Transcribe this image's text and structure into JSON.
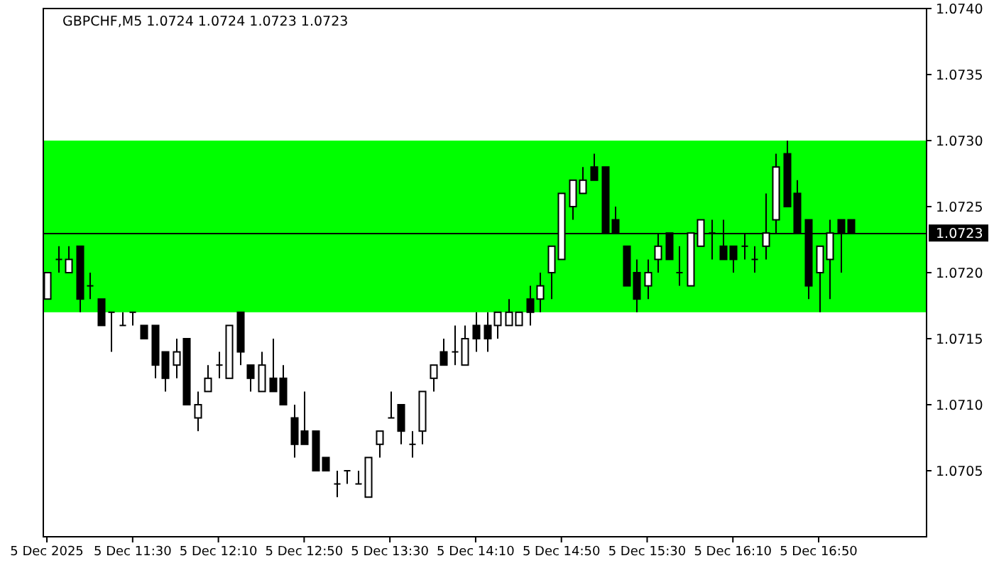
{
  "chart_data": {
    "type": "candlestick",
    "title": "GBPCHF,M5  1.0724 1.0724 1.0723 1.0723",
    "color": "#000000",
    "x": [
      "2025-12-05T10:50",
      "2025-12-05T10:55",
      "2025-12-05T11:00",
      "2025-12-05T11:05",
      "2025-12-05T11:10",
      "2025-12-05T11:15",
      "2025-12-05T11:20",
      "2025-12-05T11:25",
      "2025-12-05T11:30",
      "2025-12-05T11:35",
      "2025-12-05T11:40",
      "2025-12-05T11:45",
      "2025-12-05T11:50",
      "2025-12-05T11:55",
      "2025-12-05T12:00",
      "2025-12-05T12:05",
      "2025-12-05T12:10",
      "2025-12-05T12:15",
      "2025-12-05T12:20",
      "2025-12-05T12:25",
      "2025-12-05T12:30",
      "2025-12-05T12:35",
      "2025-12-05T12:40",
      "2025-12-05T12:45",
      "2025-12-05T12:50",
      "2025-12-05T12:55",
      "2025-12-05T13:00",
      "2025-12-05T13:05",
      "2025-12-05T13:10",
      "2025-12-05T13:15",
      "2025-12-05T13:20",
      "2025-12-05T13:25",
      "2025-12-05T13:30",
      "2025-12-05T13:35",
      "2025-12-05T13:40",
      "2025-12-05T13:45",
      "2025-12-05T13:50",
      "2025-12-05T13:55",
      "2025-12-05T14:00",
      "2025-12-05T14:05",
      "2025-12-05T14:10",
      "2025-12-05T14:15",
      "2025-12-05T14:20",
      "2025-12-05T14:25",
      "2025-12-05T14:30",
      "2025-12-05T14:35",
      "2025-12-05T14:40",
      "2025-12-05T14:45",
      "2025-12-05T14:50",
      "2025-12-05T14:55",
      "2025-12-05T15:00",
      "2025-12-05T15:05",
      "2025-12-05T15:10",
      "2025-12-05T15:15",
      "2025-12-05T15:20",
      "2025-12-05T15:25",
      "2025-12-05T15:30",
      "2025-12-05T15:35",
      "2025-12-05T15:40",
      "2025-12-05T15:45",
      "2025-12-05T15:50",
      "2025-12-05T15:55",
      "2025-12-05T16:00",
      "2025-12-05T16:05",
      "2025-12-05T16:10",
      "2025-12-05T16:15",
      "2025-12-05T16:20",
      "2025-12-05T16:25",
      "2025-12-05T16:30",
      "2025-12-05T16:35",
      "2025-12-05T16:40",
      "2025-12-05T16:45",
      "2025-12-05T16:50",
      "2025-12-05T16:55",
      "2025-12-05T17:00",
      "2025-12-05T17:05"
    ],
    "ohlc": [
      [
        1.0718,
        1.072,
        1.0718,
        1.072
      ],
      [
        1.0721,
        1.0722,
        1.072,
        1.0721
      ],
      [
        1.072,
        1.0722,
        1.072,
        1.0721
      ],
      [
        1.0722,
        1.0722,
        1.0717,
        1.0718
      ],
      [
        1.0719,
        1.072,
        1.0718,
        1.0719
      ],
      [
        1.0718,
        1.0718,
        1.0716,
        1.0716
      ],
      [
        1.0717,
        1.0717,
        1.0714,
        1.0717
      ],
      [
        1.0716,
        1.0717,
        1.0716,
        1.0716
      ],
      [
        1.0717,
        1.0717,
        1.0716,
        1.0717
      ],
      [
        1.0716,
        1.0716,
        1.0715,
        1.0715
      ],
      [
        1.0716,
        1.0716,
        1.0712,
        1.0713
      ],
      [
        1.0714,
        1.0714,
        1.0711,
        1.0712
      ],
      [
        1.0713,
        1.0715,
        1.0712,
        1.0714
      ],
      [
        1.0715,
        1.0715,
        1.071,
        1.071
      ],
      [
        1.0709,
        1.0711,
        1.0708,
        1.071
      ],
      [
        1.0711,
        1.0713,
        1.0711,
        1.0712
      ],
      [
        1.0713,
        1.0714,
        1.0712,
        1.0713
      ],
      [
        1.0712,
        1.0716,
        1.0712,
        1.0716
      ],
      [
        1.0717,
        1.0717,
        1.0713,
        1.0714
      ],
      [
        1.0713,
        1.0713,
        1.0711,
        1.0712
      ],
      [
        1.0711,
        1.0714,
        1.0711,
        1.0713
      ],
      [
        1.0712,
        1.0715,
        1.0711,
        1.0711
      ],
      [
        1.0712,
        1.0713,
        1.071,
        1.071
      ],
      [
        1.0709,
        1.071,
        1.0706,
        1.0707
      ],
      [
        1.0708,
        1.0711,
        1.0707,
        1.0707
      ],
      [
        1.0708,
        1.0708,
        1.0705,
        1.0705
      ],
      [
        1.0706,
        1.0706,
        1.0705,
        1.0705
      ],
      [
        1.0704,
        1.0705,
        1.0703,
        1.0704
      ],
      [
        1.0705,
        1.0705,
        1.0704,
        1.0705
      ],
      [
        1.0704,
        1.0705,
        1.0704,
        1.0704
      ],
      [
        1.0703,
        1.0706,
        1.0703,
        1.0706
      ],
      [
        1.0707,
        1.0708,
        1.0706,
        1.0708
      ],
      [
        1.0709,
        1.0711,
        1.0709,
        1.0709
      ],
      [
        1.071,
        1.071,
        1.0707,
        1.0708
      ],
      [
        1.0707,
        1.0708,
        1.0706,
        1.0707
      ],
      [
        1.0708,
        1.0711,
        1.0707,
        1.0711
      ],
      [
        1.0712,
        1.0713,
        1.0711,
        1.0713
      ],
      [
        1.0714,
        1.0715,
        1.0713,
        1.0713
      ],
      [
        1.0714,
        1.0716,
        1.0713,
        1.0714
      ],
      [
        1.0713,
        1.0716,
        1.0713,
        1.0715
      ],
      [
        1.0716,
        1.0717,
        1.0714,
        1.0715
      ],
      [
        1.0716,
        1.0717,
        1.0714,
        1.0715
      ],
      [
        1.0716,
        1.0717,
        1.0715,
        1.0717
      ],
      [
        1.0716,
        1.0718,
        1.0716,
        1.0717
      ],
      [
        1.0716,
        1.0717,
        1.0716,
        1.0717
      ],
      [
        1.0718,
        1.0719,
        1.0716,
        1.0717
      ],
      [
        1.0718,
        1.072,
        1.0717,
        1.0719
      ],
      [
        1.072,
        1.0722,
        1.0718,
        1.0722
      ],
      [
        1.0721,
        1.0726,
        1.0721,
        1.0726
      ],
      [
        1.0725,
        1.0727,
        1.0724,
        1.0727
      ],
      [
        1.0726,
        1.0728,
        1.0726,
        1.0727
      ],
      [
        1.0728,
        1.0729,
        1.0727,
        1.0727
      ],
      [
        1.0728,
        1.0728,
        1.0723,
        1.0723
      ],
      [
        1.0724,
        1.0725,
        1.0723,
        1.0723
      ],
      [
        1.0722,
        1.0722,
        1.0719,
        1.0719
      ],
      [
        1.072,
        1.0721,
        1.0717,
        1.0718
      ],
      [
        1.0719,
        1.0721,
        1.0718,
        1.072
      ],
      [
        1.0721,
        1.0723,
        1.072,
        1.0722
      ],
      [
        1.0723,
        1.0723,
        1.0721,
        1.0721
      ],
      [
        1.072,
        1.0722,
        1.0719,
        1.072
      ],
      [
        1.0719,
        1.0723,
        1.0719,
        1.0723
      ],
      [
        1.0722,
        1.0724,
        1.0722,
        1.0724
      ],
      [
        1.0723,
        1.0724,
        1.0721,
        1.0723
      ],
      [
        1.0722,
        1.0724,
        1.0721,
        1.0721
      ],
      [
        1.0722,
        1.0722,
        1.072,
        1.0721
      ],
      [
        1.0722,
        1.0723,
        1.0721,
        1.0722
      ],
      [
        1.0721,
        1.0722,
        1.072,
        1.0721
      ],
      [
        1.0722,
        1.0726,
        1.0721,
        1.0723
      ],
      [
        1.0724,
        1.0729,
        1.0723,
        1.0728
      ],
      [
        1.0729,
        1.073,
        1.0725,
        1.0725
      ],
      [
        1.0726,
        1.0727,
        1.0723,
        1.0723
      ],
      [
        1.0724,
        1.0724,
        1.0718,
        1.0719
      ],
      [
        1.072,
        1.0722,
        1.0717,
        1.0722
      ],
      [
        1.0721,
        1.0724,
        1.0718,
        1.0723
      ],
      [
        1.0724,
        1.0724,
        1.072,
        1.0723
      ],
      [
        1.0724,
        1.0724,
        1.0723,
        1.0723
      ]
    ],
    "xlim": [
      "2025-12-05T10:48",
      "2025-12-05T17:40"
    ],
    "xticks": [
      {
        "value": "2025-12-05T10:50",
        "label": "5 Dec 2025"
      },
      {
        "value": "2025-12-05T11:30",
        "label": "5 Dec 11:30"
      },
      {
        "value": "2025-12-05T12:10",
        "label": "5 Dec 12:10"
      },
      {
        "value": "2025-12-05T12:50",
        "label": "5 Dec 12:50"
      },
      {
        "value": "2025-12-05T13:30",
        "label": "5 Dec 13:30"
      },
      {
        "value": "2025-12-05T14:10",
        "label": "5 Dec 14:10"
      },
      {
        "value": "2025-12-05T14:50",
        "label": "5 Dec 14:50"
      },
      {
        "value": "2025-12-05T15:30",
        "label": "5 Dec 15:30"
      },
      {
        "value": "2025-12-05T16:10",
        "label": "5 Dec 16:10"
      },
      {
        "value": "2025-12-05T16:50",
        "label": "5 Dec 16:50"
      }
    ],
    "ylim": [
      1.07,
      1.074
    ],
    "yticks": [
      {
        "value": 1.0705,
        "label": "1.0705"
      },
      {
        "value": 1.071,
        "label": "1.0710"
      },
      {
        "value": 1.0715,
        "label": "1.0715"
      },
      {
        "value": 1.072,
        "label": "1.0720"
      },
      {
        "value": 1.0725,
        "label": "1.0725"
      },
      {
        "value": 1.073,
        "label": "1.0730"
      },
      {
        "value": 1.0735,
        "label": "1.0735"
      },
      {
        "value": 1.074,
        "label": "1.0740"
      }
    ],
    "ref_lines": [
      {
        "axis": "y",
        "value": 1.0723,
        "label": "1.0723",
        "color": "#000000"
      }
    ],
    "bands": [
      {
        "axis": "y",
        "from": 1.0717,
        "to": 1.073,
        "color": "#00ff00"
      }
    ]
  }
}
